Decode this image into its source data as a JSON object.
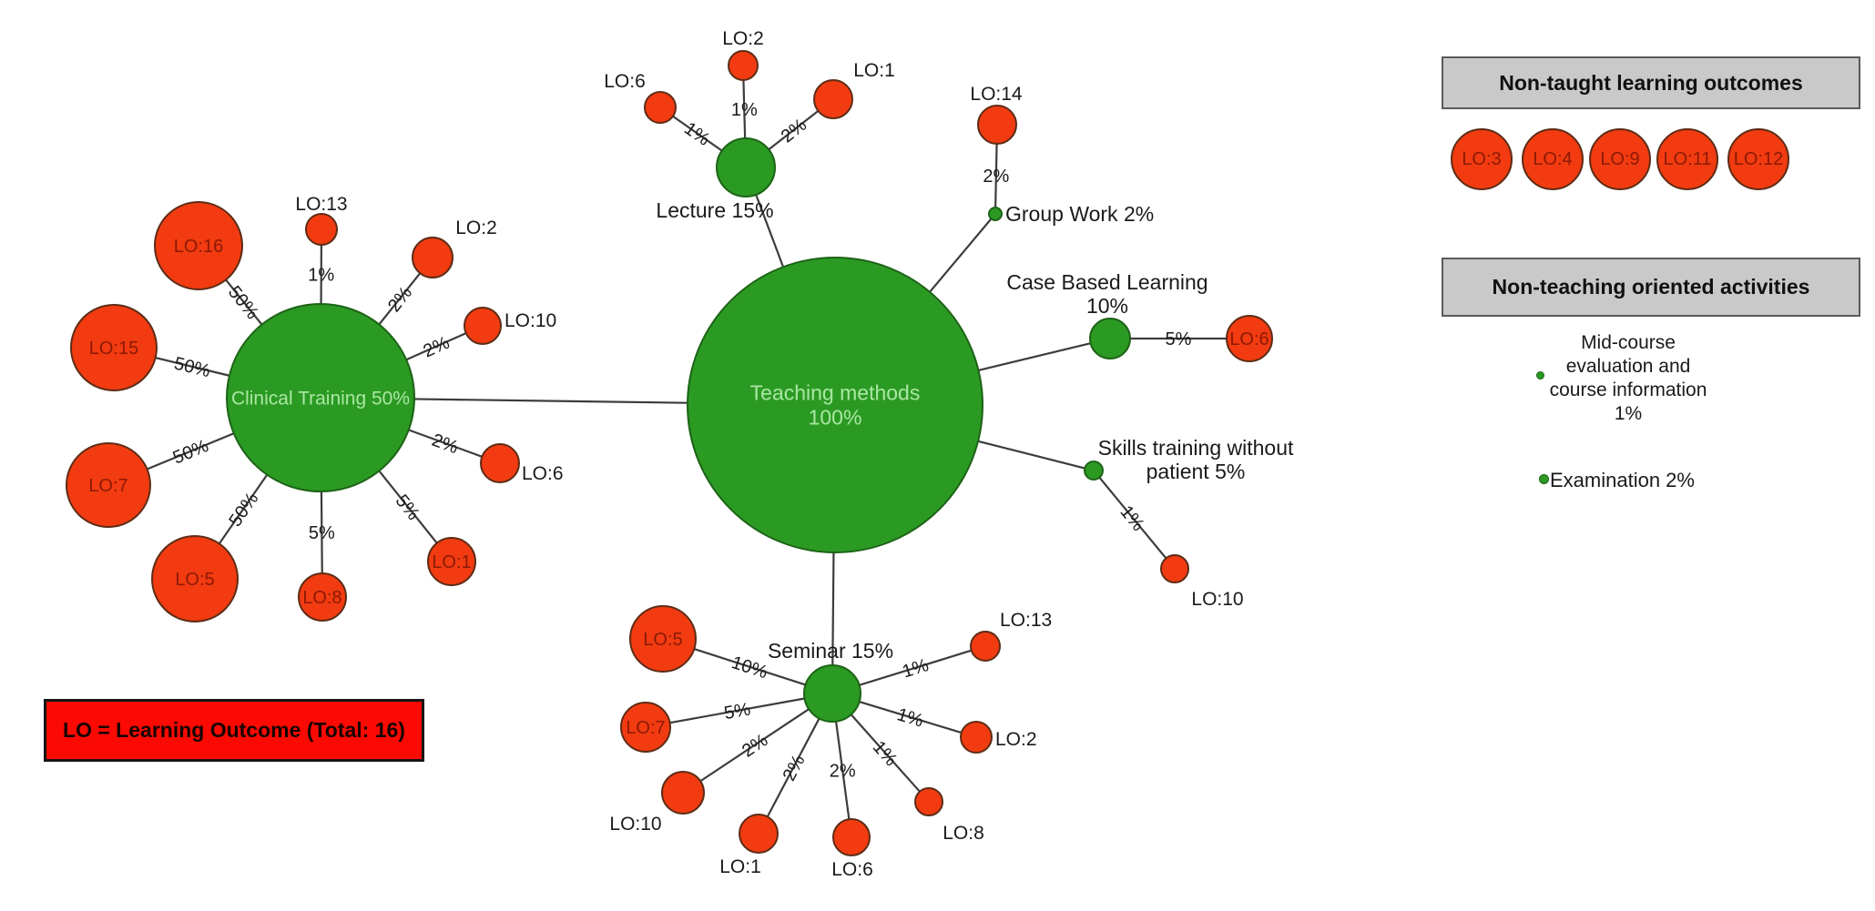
{
  "legend_box": {
    "label": "LO = Learning Outcome (Total: 16)"
  },
  "panels": {
    "non_taught": {
      "title": "Non-taught learning outcomes",
      "items": [
        "LO:3",
        "LO:4",
        "LO:9",
        "LO:11",
        "LO:12"
      ]
    },
    "non_teaching": {
      "title": "Non-teaching oriented activities",
      "items": [
        {
          "lines": [
            "Mid-course",
            "evaluation and",
            "course information",
            "1%"
          ]
        },
        {
          "lines": [
            "Examination 2%"
          ]
        }
      ]
    }
  },
  "colors": {
    "method_fill": "#2b9a23",
    "method_stroke": "#1d6317",
    "outcome_fill": "#f23b10",
    "outcome_stroke": "#5d2c16",
    "edge": "#3c3c3c",
    "edge_label": "#1a1a1a",
    "outcome_label_dark": "#8b1a05",
    "method_label_light": "#a9e7a2",
    "panel_bg": "#c9c9c9",
    "legend_bg": "#fa0a03"
  },
  "diagram": {
    "nodes": [
      {
        "id": "teaching",
        "type": "method",
        "label": [
          "Teaching methods",
          "100%"
        ],
        "label_pos": "inside"
      },
      {
        "id": "clinical",
        "type": "method",
        "label": [
          "Clinical Training 50%"
        ],
        "label_pos": "inside"
      },
      {
        "id": "lecture",
        "type": "method",
        "label": [
          "Lecture 15%"
        ],
        "label_pos": "outside"
      },
      {
        "id": "seminar",
        "type": "method",
        "label": [
          "Seminar 15%"
        ],
        "label_pos": "outside"
      },
      {
        "id": "groupwork",
        "type": "method",
        "label": [
          "Group Work 2%"
        ],
        "label_pos": "outside"
      },
      {
        "id": "casebased",
        "type": "method",
        "label": [
          "Case Based Learning",
          "10%"
        ],
        "label_pos": "outside"
      },
      {
        "id": "skills",
        "type": "method",
        "label": [
          "Skills training without",
          "patient 5%"
        ],
        "label_pos": "outside"
      },
      {
        "id": "ct-lo16",
        "type": "outcome",
        "label": [
          "LO:16"
        ],
        "label_pos": "inside"
      },
      {
        "id": "ct-lo13",
        "type": "outcome",
        "label": [
          "LO:13"
        ],
        "label_pos": "outside"
      },
      {
        "id": "ct-lo2",
        "type": "outcome",
        "label": [
          "LO:2"
        ],
        "label_pos": "outside"
      },
      {
        "id": "ct-lo10",
        "type": "outcome",
        "label": [
          "LO:10"
        ],
        "label_pos": "outside"
      },
      {
        "id": "ct-lo15",
        "type": "outcome",
        "label": [
          "LO:15"
        ],
        "label_pos": "inside"
      },
      {
        "id": "ct-lo6",
        "type": "outcome",
        "label": [
          "LO:6"
        ],
        "label_pos": "outside"
      },
      {
        "id": "ct-lo7",
        "type": "outcome",
        "label": [
          "LO:7"
        ],
        "label_pos": "inside"
      },
      {
        "id": "ct-lo5",
        "type": "outcome",
        "label": [
          "LO:5"
        ],
        "label_pos": "inside"
      },
      {
        "id": "ct-lo8",
        "type": "outcome",
        "label": [
          "LO:8"
        ],
        "label_pos": "inside"
      },
      {
        "id": "ct-lo1",
        "type": "outcome",
        "label": [
          "LO:1"
        ],
        "label_pos": "inside"
      },
      {
        "id": "lec-lo6",
        "type": "outcome",
        "label": [
          "LO:6"
        ],
        "label_pos": "outside"
      },
      {
        "id": "lec-lo2",
        "type": "outcome",
        "label": [
          "LO:2"
        ],
        "label_pos": "outside"
      },
      {
        "id": "lec-lo1",
        "type": "outcome",
        "label": [
          "LO:1"
        ],
        "label_pos": "outside"
      },
      {
        "id": "gw-lo14",
        "type": "outcome",
        "label": [
          "LO:14"
        ],
        "label_pos": "outside"
      },
      {
        "id": "cbl-lo6",
        "type": "outcome",
        "label": [
          "LO:6"
        ],
        "label_pos": "inside"
      },
      {
        "id": "sk-lo10",
        "type": "outcome",
        "label": [
          "LO:10"
        ],
        "label_pos": "outside"
      },
      {
        "id": "sem-lo5",
        "type": "outcome",
        "label": [
          "LO:5"
        ],
        "label_pos": "inside"
      },
      {
        "id": "sem-lo13",
        "type": "outcome",
        "label": [
          "LO:13"
        ],
        "label_pos": "outside"
      },
      {
        "id": "sem-lo7",
        "type": "outcome",
        "label": [
          "LO:7"
        ],
        "label_pos": "inside"
      },
      {
        "id": "sem-lo2",
        "type": "outcome",
        "label": [
          "LO:2"
        ],
        "label_pos": "outside"
      },
      {
        "id": "sem-lo10",
        "type": "outcome",
        "label": [
          "LO:10"
        ],
        "label_pos": "outside"
      },
      {
        "id": "sem-lo1",
        "type": "outcome",
        "label": [
          "LO:1"
        ],
        "label_pos": "outside"
      },
      {
        "id": "sem-lo6",
        "type": "outcome",
        "label": [
          "LO:6"
        ],
        "label_pos": "outside"
      },
      {
        "id": "sem-lo8",
        "type": "outcome",
        "label": [
          "LO:8"
        ],
        "label_pos": "outside"
      }
    ],
    "edges": [
      {
        "from": "teaching",
        "to": "clinical",
        "label": ""
      },
      {
        "from": "teaching",
        "to": "lecture",
        "label": ""
      },
      {
        "from": "teaching",
        "to": "groupwork",
        "label": ""
      },
      {
        "from": "teaching",
        "to": "casebased",
        "label": ""
      },
      {
        "from": "teaching",
        "to": "skills",
        "label": ""
      },
      {
        "from": "teaching",
        "to": "seminar",
        "label": ""
      },
      {
        "from": "clinical",
        "to": "ct-lo16",
        "label": "50%"
      },
      {
        "from": "clinical",
        "to": "ct-lo13",
        "label": "1%"
      },
      {
        "from": "clinical",
        "to": "ct-lo2",
        "label": "2%"
      },
      {
        "from": "clinical",
        "to": "ct-lo10",
        "label": "2%"
      },
      {
        "from": "clinical",
        "to": "ct-lo15",
        "label": "50%"
      },
      {
        "from": "clinical",
        "to": "ct-lo6",
        "label": "2%"
      },
      {
        "from": "clinical",
        "to": "ct-lo7",
        "label": "50%"
      },
      {
        "from": "clinical",
        "to": "ct-lo5",
        "label": "50%"
      },
      {
        "from": "clinical",
        "to": "ct-lo8",
        "label": "5%"
      },
      {
        "from": "clinical",
        "to": "ct-lo1",
        "label": "5%"
      },
      {
        "from": "lecture",
        "to": "lec-lo6",
        "label": "1%"
      },
      {
        "from": "lecture",
        "to": "lec-lo2",
        "label": "1%"
      },
      {
        "from": "lecture",
        "to": "lec-lo1",
        "label": "2%"
      },
      {
        "from": "groupwork",
        "to": "gw-lo14",
        "label": "2%"
      },
      {
        "from": "casebased",
        "to": "cbl-lo6",
        "label": "5%"
      },
      {
        "from": "skills",
        "to": "sk-lo10",
        "label": "1%"
      },
      {
        "from": "seminar",
        "to": "sem-lo5",
        "label": "10%"
      },
      {
        "from": "seminar",
        "to": "sem-lo13",
        "label": "1%"
      },
      {
        "from": "seminar",
        "to": "sem-lo7",
        "label": "5%"
      },
      {
        "from": "seminar",
        "to": "sem-lo2",
        "label": "1%"
      },
      {
        "from": "seminar",
        "to": "sem-lo10",
        "label": "2%"
      },
      {
        "from": "seminar",
        "to": "sem-lo1",
        "label": "2%"
      },
      {
        "from": "seminar",
        "to": "sem-lo6",
        "label": "2%"
      },
      {
        "from": "seminar",
        "to": "sem-lo8",
        "label": "1%"
      }
    ]
  }
}
